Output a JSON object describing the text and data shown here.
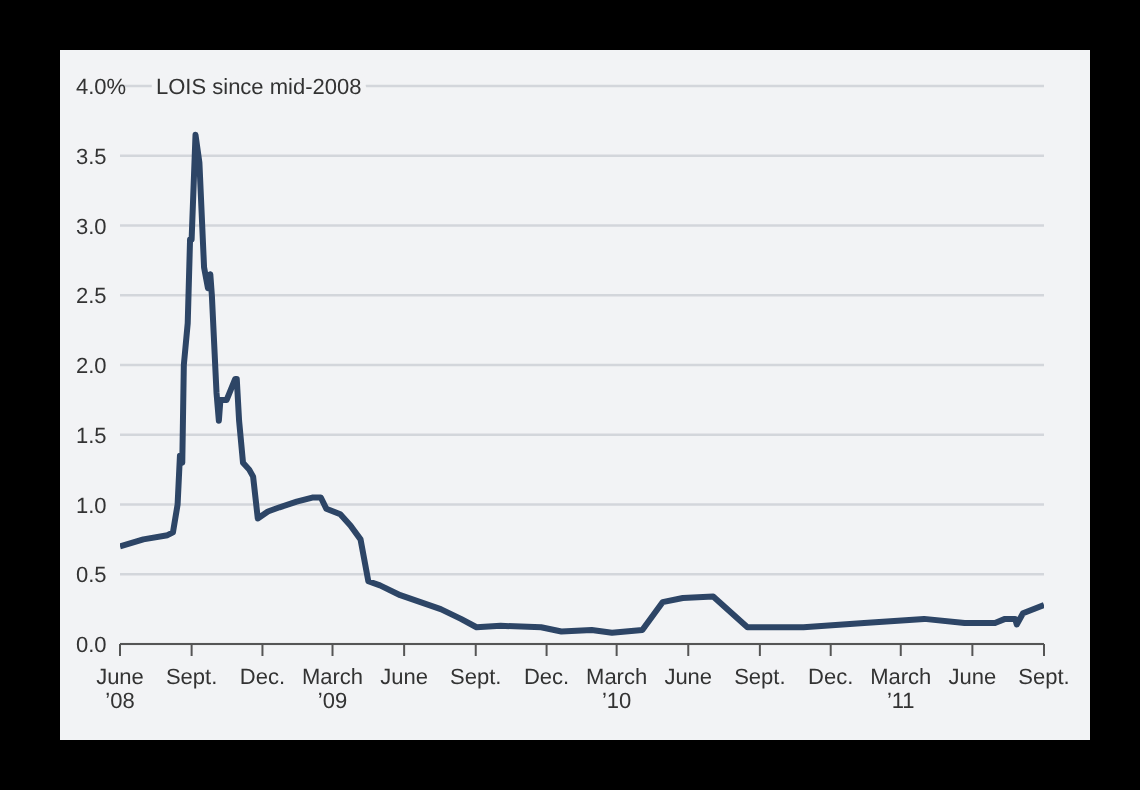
{
  "chart_data": {
    "type": "line",
    "title": "LOIS since mid-2008",
    "x": [
      "2008-06-01",
      "2008-07-01",
      "2008-08-01",
      "2008-08-08",
      "2008-08-14",
      "2008-08-17",
      "2008-08-20",
      "2008-08-22",
      "2008-08-27",
      "2008-08-30",
      "2008-09-01",
      "2008-09-06",
      "2008-09-11",
      "2008-09-17",
      "2008-09-22",
      "2008-09-25",
      "2008-09-27",
      "2008-10-03",
      "2008-10-06",
      "2008-10-08",
      "2008-10-16",
      "2008-10-27",
      "2008-10-29",
      "2008-11-01",
      "2008-11-06",
      "2008-11-14",
      "2008-11-19",
      "2008-11-25",
      "2008-12-08",
      "2008-12-23",
      "2009-01-14",
      "2009-02-03",
      "2009-02-14",
      "2009-02-21",
      "2009-03-11",
      "2009-03-24",
      "2009-04-06",
      "2009-04-16",
      "2009-05-01",
      "2009-05-27",
      "2009-06-22",
      "2009-07-18",
      "2009-08-13",
      "2009-09-02",
      "2009-10-03",
      "2009-11-24",
      "2009-12-20",
      "2010-01-28",
      "2010-02-23",
      "2010-04-03",
      "2010-04-29",
      "2010-05-25",
      "2010-07-03",
      "2010-08-16",
      "2010-10-27",
      "2011-01-13",
      "2011-03-31",
      "2011-05-22",
      "2011-06-30",
      "2011-07-13",
      "2011-07-26",
      "2011-07-28",
      "2011-08-05",
      "2011-09-01"
    ],
    "series": [
      {
        "color": "#2d4566",
        "values": [
          0.7,
          0.75,
          0.78,
          0.8,
          1.0,
          1.35,
          1.3,
          2.0,
          2.3,
          2.9,
          2.9,
          3.65,
          3.45,
          2.7,
          2.55,
          2.65,
          2.5,
          1.8,
          1.6,
          1.75,
          1.75,
          1.9,
          1.9,
          1.6,
          1.3,
          1.25,
          1.2,
          0.9,
          0.95,
          0.98,
          1.02,
          1.05,
          1.05,
          0.97,
          0.93,
          0.85,
          0.75,
          0.45,
          0.42,
          0.35,
          0.3,
          0.25,
          0.18,
          0.12,
          0.13,
          0.12,
          0.09,
          0.1,
          0.08,
          0.1,
          0.3,
          0.33,
          0.34,
          0.12,
          0.12,
          0.15,
          0.18,
          0.15,
          0.15,
          0.18,
          0.18,
          0.14,
          0.22,
          0.28
        ]
      }
    ],
    "xlim": [
      "2008-06-01",
      "2011-09-01"
    ],
    "xticks": [
      {
        "value": "2008-06-01",
        "label": "June\n’08"
      },
      {
        "value": "2008-09-01",
        "label": "Sept."
      },
      {
        "value": "2008-12-01",
        "label": "Dec."
      },
      {
        "value": "2009-03-01",
        "label": "March\n’09"
      },
      {
        "value": "2009-06-01",
        "label": "June"
      },
      {
        "value": "2009-09-01",
        "label": "Sept."
      },
      {
        "value": "2009-12-01",
        "label": "Dec."
      },
      {
        "value": "2010-03-01",
        "label": "March\n’10"
      },
      {
        "value": "2010-06-01",
        "label": "June"
      },
      {
        "value": "2010-09-01",
        "label": "Sept."
      },
      {
        "value": "2010-12-01",
        "label": "Dec."
      },
      {
        "value": "2011-03-01",
        "label": "March\n’11"
      },
      {
        "value": "2011-06-01",
        "label": "June"
      },
      {
        "value": "2011-09-01",
        "label": "Sept."
      }
    ],
    "ylim": [
      0,
      4
    ],
    "yticks": [
      {
        "value": 0,
        "label": "0.0"
      },
      {
        "value": 0.5,
        "label": "0.5"
      },
      {
        "value": 1,
        "label": "1.0"
      },
      {
        "value": 1.5,
        "label": "1.5"
      },
      {
        "value": 2,
        "label": "2.0"
      },
      {
        "value": 2.5,
        "label": "2.5"
      },
      {
        "value": 3,
        "label": "3.0"
      },
      {
        "value": 3.5,
        "label": "3.5"
      },
      {
        "value": 4,
        "label": "4.0%"
      }
    ],
    "grid": "y",
    "marker": "none"
  }
}
